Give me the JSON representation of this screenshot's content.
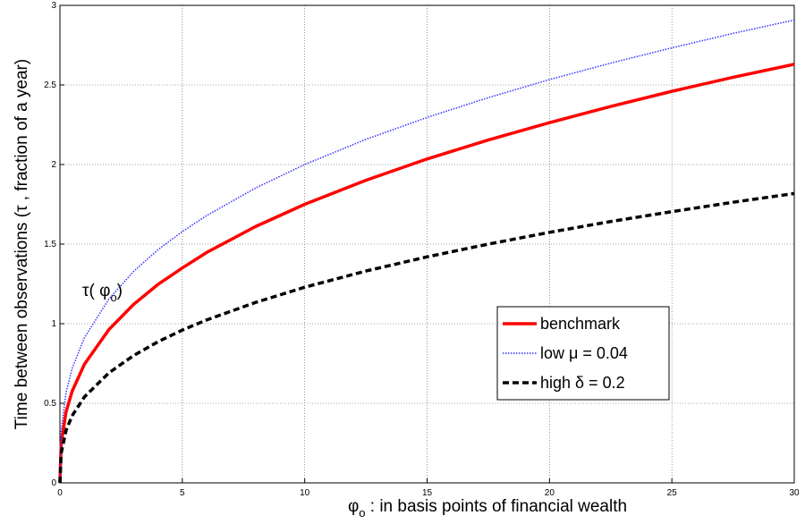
{
  "chart_data": {
    "type": "line",
    "xlabel": [
      "φ",
      "o",
      " : in basis points of financial wealth"
    ],
    "ylabel": "Time between observations (τ ,  fraction of a year)",
    "annotation": [
      "τ( φ",
      "o",
      ")"
    ],
    "x": [
      0,
      0.05,
      0.25,
      0.5,
      1,
      2,
      3,
      4,
      5,
      6,
      8,
      10,
      12.5,
      15,
      17.5,
      20,
      22.5,
      25,
      27.5,
      30
    ],
    "series": [
      {
        "name": "benchmark",
        "color": "#ff0000",
        "style": "solid",
        "values": [
          0,
          0.245,
          0.446,
          0.576,
          0.745,
          0.963,
          1.12,
          1.246,
          1.35,
          1.448,
          1.611,
          1.75,
          1.901,
          2.035,
          2.154,
          2.263,
          2.365,
          2.46,
          2.548,
          2.63
        ]
      },
      {
        "name": "low μ = 0.04",
        "color": "#3333ff",
        "style": "dotted",
        "values": [
          0,
          0.328,
          0.568,
          0.72,
          0.912,
          1.155,
          1.327,
          1.464,
          1.579,
          1.68,
          1.853,
          2.0,
          2.158,
          2.296,
          2.42,
          2.534,
          2.637,
          2.733,
          2.824,
          2.908
        ]
      },
      {
        "name": "high δ = 0.2",
        "color": "#000000",
        "style": "dashed",
        "values": [
          0,
          0.185,
          0.329,
          0.422,
          0.54,
          0.691,
          0.799,
          0.886,
          0.96,
          1.024,
          1.134,
          1.229,
          1.331,
          1.42,
          1.5,
          1.574,
          1.642,
          1.704,
          1.763,
          1.818
        ]
      }
    ],
    "xlim": [
      0,
      30
    ],
    "xticks": [
      0,
      5,
      10,
      15,
      20,
      25,
      30
    ],
    "ylim": [
      0,
      3
    ],
    "yticks": [
      0,
      0.5,
      1,
      1.5,
      2,
      2.5,
      3
    ],
    "grid": true,
    "legend": "lower right"
  }
}
